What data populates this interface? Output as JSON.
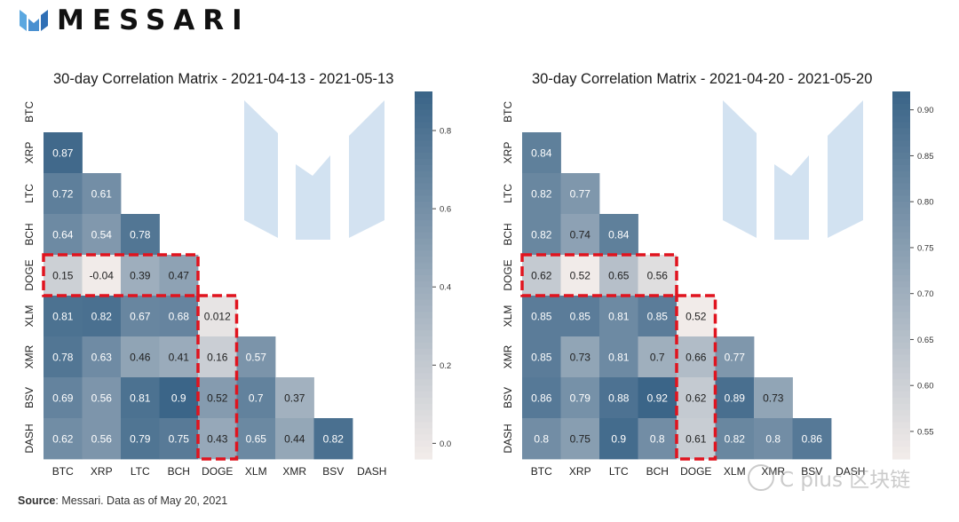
{
  "brand": {
    "name": "MESSARI",
    "logo_icon": "messari-m-icon"
  },
  "source": {
    "label": "Source",
    "text": ": Messari. Data as of May 20, 2021"
  },
  "watermark": {
    "text": "C plus 区块链"
  },
  "colors": {
    "high": "#3b6588",
    "low": "#f1ebe9",
    "highlight_box": "#e0141f",
    "logo_watermark": "#c8dbee"
  },
  "chart_data": [
    {
      "type": "heatmap",
      "title": "30-day Correlation Matrix - 2021-04-13 - 2021-05-13",
      "labels": [
        "BTC",
        "XRP",
        "LTC",
        "BCH",
        "DOGE",
        "XLM",
        "XMR",
        "BSV",
        "DASH"
      ],
      "matrix_lower": [
        [],
        [
          0.87
        ],
        [
          0.72,
          0.61
        ],
        [
          0.64,
          0.54,
          0.78
        ],
        [
          0.15,
          -0.04,
          0.39,
          0.47
        ],
        [
          0.81,
          0.82,
          0.67,
          0.68,
          0.012
        ],
        [
          0.78,
          0.63,
          0.46,
          0.41,
          0.16,
          0.57
        ],
        [
          0.69,
          0.56,
          0.81,
          0.9,
          0.52,
          0.7,
          0.37
        ],
        [
          0.62,
          0.56,
          0.79,
          0.75,
          0.43,
          0.65,
          0.44,
          0.82
        ]
      ],
      "cell_text": [
        [],
        [
          "0.87"
        ],
        [
          "0.72",
          "0.61"
        ],
        [
          "0.64",
          "0.54",
          "0.78"
        ],
        [
          "0.15",
          "-0.04",
          "0.39",
          "0.47"
        ],
        [
          "0.81",
          "0.82",
          "0.67",
          "0.68",
          "0.012"
        ],
        [
          "0.78",
          "0.63",
          "0.46",
          "0.41",
          "0.16",
          "0.57"
        ],
        [
          "0.69",
          "0.56",
          "0.81",
          "0.9",
          "0.52",
          "0.7",
          "0.37"
        ],
        [
          "0.62",
          "0.56",
          "0.79",
          "0.75",
          "0.43",
          "0.65",
          "0.44",
          "0.82"
        ]
      ],
      "colorbar": {
        "vmin": -0.04,
        "vmax": 0.9,
        "ticks": [
          0.0,
          0.2,
          0.4,
          0.6,
          0.8
        ],
        "tick_labels": [
          "0.0",
          "0.2",
          "0.4",
          "0.6",
          "0.8"
        ]
      },
      "highlight": {
        "row": 4,
        "col": 4
      }
    },
    {
      "type": "heatmap",
      "title": "30-day Correlation Matrix - 2021-04-20 - 2021-05-20",
      "labels": [
        "BTC",
        "XRP",
        "LTC",
        "BCH",
        "DOGE",
        "XLM",
        "XMR",
        "BSV",
        "DASH"
      ],
      "matrix_lower": [
        [],
        [
          0.84
        ],
        [
          0.82,
          0.77
        ],
        [
          0.82,
          0.74,
          0.84
        ],
        [
          0.62,
          0.52,
          0.65,
          0.56
        ],
        [
          0.85,
          0.85,
          0.81,
          0.85,
          0.52
        ],
        [
          0.85,
          0.73,
          0.81,
          0.7,
          0.66,
          0.77
        ],
        [
          0.86,
          0.79,
          0.88,
          0.92,
          0.62,
          0.89,
          0.73
        ],
        [
          0.8,
          0.75,
          0.9,
          0.8,
          0.61,
          0.82,
          0.8,
          0.86
        ]
      ],
      "cell_text": [
        [],
        [
          "0.84"
        ],
        [
          "0.82",
          "0.77"
        ],
        [
          "0.82",
          "0.74",
          "0.84"
        ],
        [
          "0.62",
          "0.52",
          "0.65",
          "0.56"
        ],
        [
          "0.85",
          "0.85",
          "0.81",
          "0.85",
          "0.52"
        ],
        [
          "0.85",
          "0.73",
          "0.81",
          "0.7",
          "0.66",
          "0.77"
        ],
        [
          "0.86",
          "0.79",
          "0.88",
          "0.92",
          "0.62",
          "0.89",
          "0.73"
        ],
        [
          "0.8",
          "0.75",
          "0.9",
          "0.8",
          "0.61",
          "0.82",
          "0.8",
          "0.86"
        ]
      ],
      "colorbar": {
        "vmin": 0.52,
        "vmax": 0.92,
        "ticks": [
          0.55,
          0.6,
          0.65,
          0.7,
          0.75,
          0.8,
          0.85,
          0.9
        ],
        "tick_labels": [
          "0.55",
          "0.60",
          "0.65",
          "0.70",
          "0.75",
          "0.80",
          "0.85",
          "0.90"
        ]
      },
      "highlight": {
        "row": 4,
        "col": 4
      }
    }
  ]
}
